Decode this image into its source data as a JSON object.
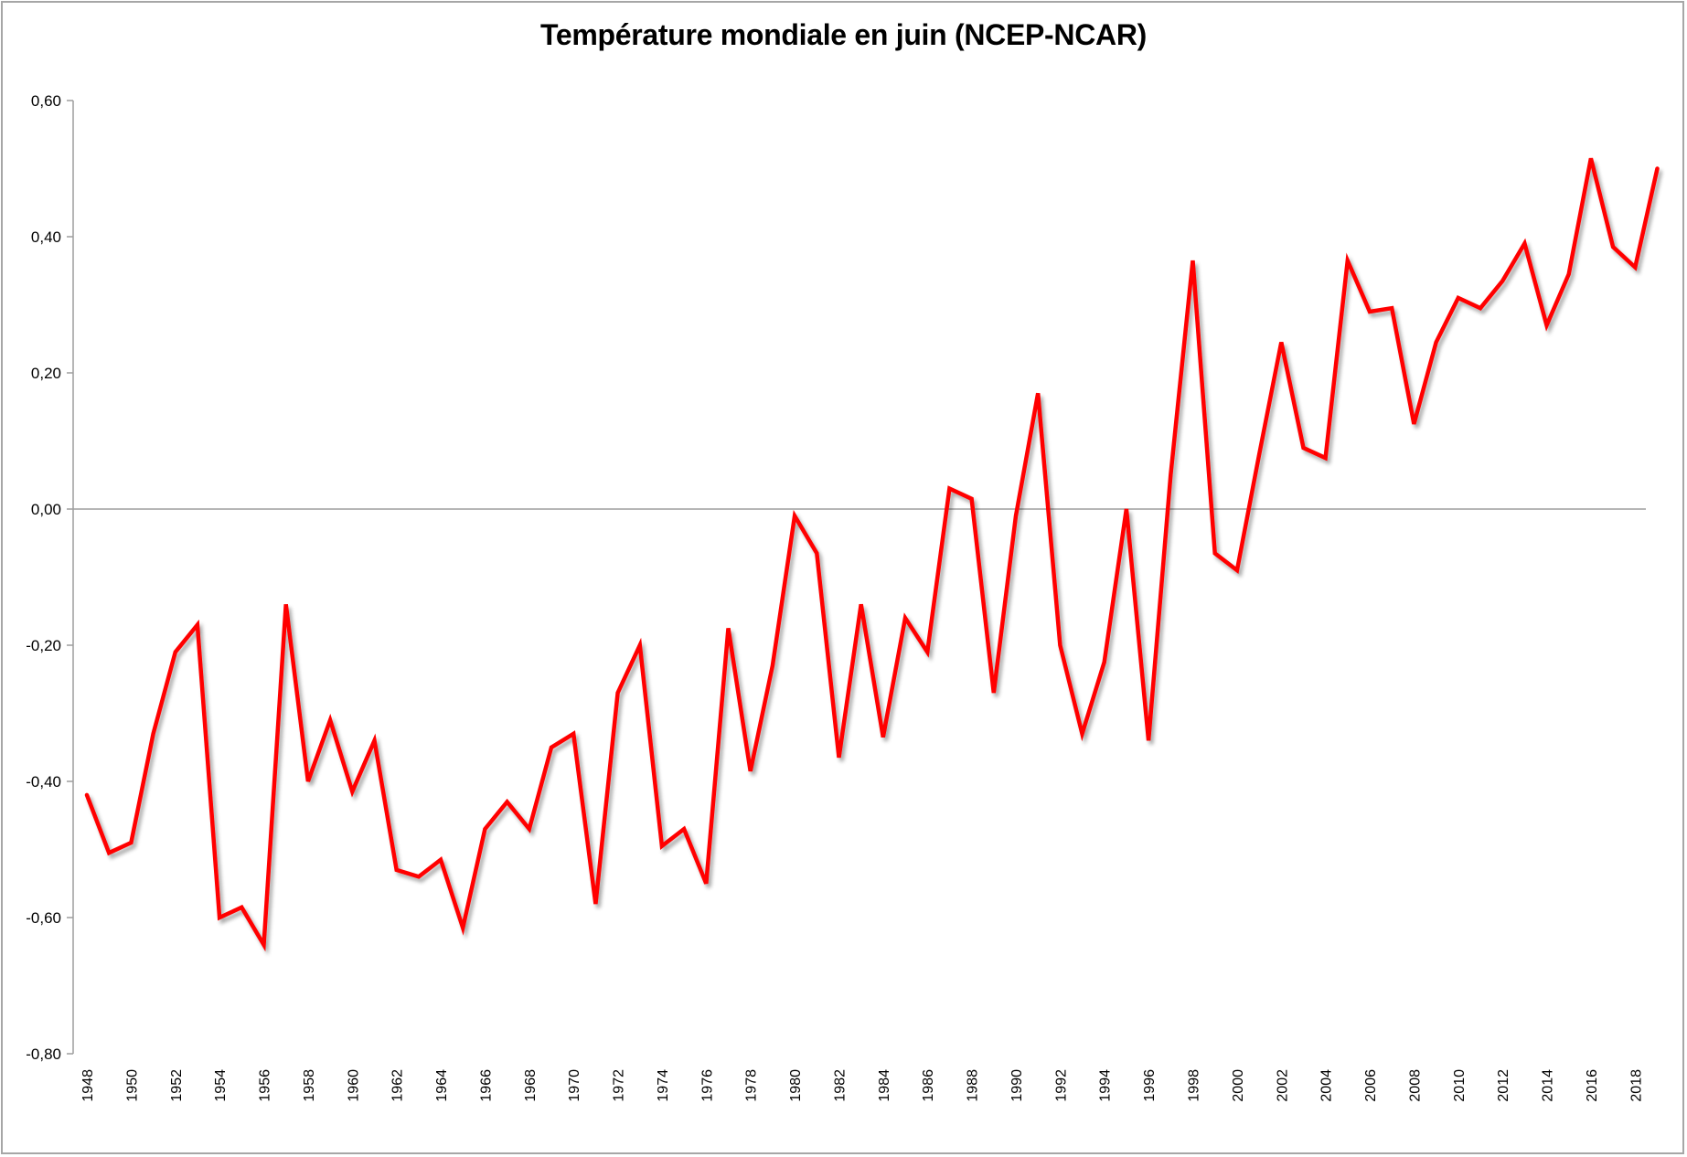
{
  "chart_data": {
    "type": "line",
    "title": "Température mondiale en juin (NCEP-NCAR)",
    "xlabel": "",
    "ylabel": "",
    "ylim": [
      -0.8,
      0.6
    ],
    "yticks": [
      0.6,
      0.4,
      0.2,
      0.0,
      -0.2,
      -0.4,
      -0.6,
      -0.8
    ],
    "ytick_labels": [
      "0,60",
      "0,40",
      "0,20",
      "0,00",
      "-0,20",
      "-0,40",
      "-0,60",
      "-0,80"
    ],
    "xtick_labels": [
      "1948",
      "1950",
      "1952",
      "1954",
      "1956",
      "1958",
      "1960",
      "1962",
      "1964",
      "1966",
      "1968",
      "1970",
      "1972",
      "1974",
      "1976",
      "1978",
      "1980",
      "1982",
      "1984",
      "1986",
      "1988",
      "1990",
      "1992",
      "1994",
      "1996",
      "1998",
      "2000",
      "2002",
      "2004",
      "2006",
      "2008",
      "2010",
      "2012",
      "2014",
      "2016",
      "2018"
    ],
    "grid": false,
    "zero_line": true,
    "line_color": "#ff0000",
    "x": [
      1948,
      1949,
      1950,
      1951,
      1952,
      1953,
      1954,
      1955,
      1956,
      1957,
      1958,
      1959,
      1960,
      1961,
      1962,
      1963,
      1964,
      1965,
      1966,
      1967,
      1968,
      1969,
      1970,
      1971,
      1972,
      1973,
      1974,
      1975,
      1976,
      1977,
      1978,
      1979,
      1980,
      1981,
      1982,
      1983,
      1984,
      1985,
      1986,
      1987,
      1988,
      1989,
      1990,
      1991,
      1992,
      1993,
      1994,
      1995,
      1996,
      1997,
      1998,
      1999,
      2000,
      2001,
      2002,
      2003,
      2004,
      2005,
      2006,
      2007,
      2008,
      2009,
      2010,
      2011,
      2012,
      2013,
      2014,
      2015,
      2016,
      2017,
      2018,
      2019
    ],
    "series": [
      {
        "name": "Température mondiale en juin",
        "values": [
          -0.42,
          -0.505,
          -0.49,
          -0.33,
          -0.21,
          -0.17,
          -0.6,
          -0.585,
          -0.64,
          -0.14,
          -0.4,
          -0.31,
          -0.415,
          -0.34,
          -0.53,
          -0.54,
          -0.515,
          -0.615,
          -0.47,
          -0.43,
          -0.47,
          -0.35,
          -0.33,
          -0.58,
          -0.27,
          -0.2,
          -0.495,
          -0.47,
          -0.55,
          -0.175,
          -0.385,
          -0.23,
          -0.01,
          -0.065,
          -0.365,
          -0.14,
          -0.335,
          -0.16,
          -0.21,
          0.03,
          0.015,
          -0.27,
          -0.01,
          0.17,
          -0.2,
          -0.33,
          -0.225,
          0.0,
          -0.34,
          0.05,
          0.365,
          -0.065,
          -0.09,
          0.08,
          0.245,
          0.09,
          0.075,
          0.365,
          0.29,
          0.295,
          0.125,
          0.245,
          0.31,
          0.295,
          0.335,
          0.39,
          0.27,
          0.345,
          0.515,
          0.385,
          0.355,
          0.5
        ]
      }
    ]
  }
}
